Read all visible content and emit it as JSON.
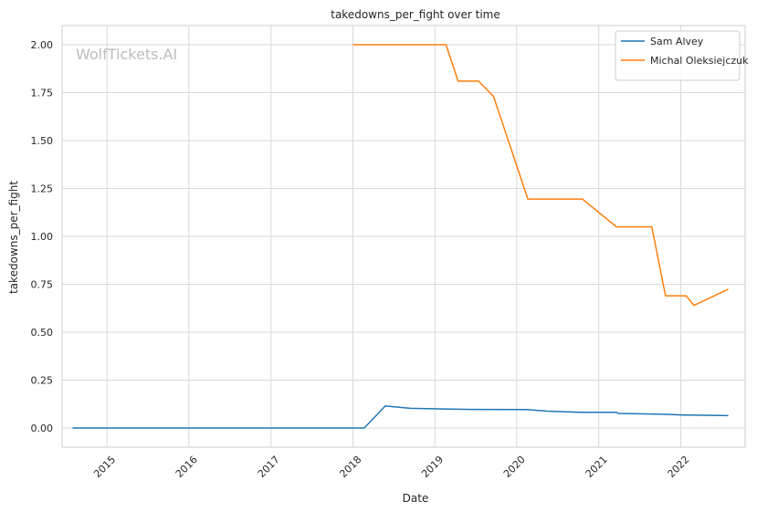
{
  "chart_data": {
    "type": "line",
    "title": "takedowns_per_fight over time",
    "xlabel": "Date",
    "ylabel": "takedowns_per_fight",
    "watermark": "WolfTickets.AI",
    "xlim": [
      "2014-06-15",
      "2022-10-15"
    ],
    "ylim": [
      -0.1,
      2.1
    ],
    "x_ticks": [
      {
        "date": "2015-01-01",
        "label": "2015"
      },
      {
        "date": "2016-01-01",
        "label": "2016"
      },
      {
        "date": "2017-01-01",
        "label": "2017"
      },
      {
        "date": "2018-01-01",
        "label": "2018"
      },
      {
        "date": "2019-01-01",
        "label": "2019"
      },
      {
        "date": "2020-01-01",
        "label": "2020"
      },
      {
        "date": "2021-01-01",
        "label": "2021"
      },
      {
        "date": "2022-01-01",
        "label": "2022"
      }
    ],
    "y_ticks": [
      {
        "value": 0.0,
        "label": "0.00"
      },
      {
        "value": 0.25,
        "label": "0.25"
      },
      {
        "value": 0.5,
        "label": "0.50"
      },
      {
        "value": 0.75,
        "label": "0.75"
      },
      {
        "value": 1.0,
        "label": "1.00"
      },
      {
        "value": 1.25,
        "label": "1.25"
      },
      {
        "value": 1.5,
        "label": "1.50"
      },
      {
        "value": 1.75,
        "label": "1.75"
      },
      {
        "value": 2.0,
        "label": "2.00"
      }
    ],
    "grid": true,
    "legend_position": "top-right",
    "series": [
      {
        "name": "Sam Alvey",
        "color": "#1f77b4",
        "points": [
          {
            "x": "2014-08-01",
            "y": 0.0
          },
          {
            "x": "2018-02-20",
            "y": 0.0
          },
          {
            "x": "2018-05-25",
            "y": 0.115
          },
          {
            "x": "2018-09-15",
            "y": 0.103
          },
          {
            "x": "2019-01-15",
            "y": 0.1
          },
          {
            "x": "2019-06-15",
            "y": 0.097
          },
          {
            "x": "2020-02-15",
            "y": 0.096
          },
          {
            "x": "2020-05-15",
            "y": 0.088
          },
          {
            "x": "2020-10-15",
            "y": 0.082
          },
          {
            "x": "2021-03-20",
            "y": 0.082
          },
          {
            "x": "2021-03-30",
            "y": 0.076
          },
          {
            "x": "2021-10-15",
            "y": 0.072
          },
          {
            "x": "2022-01-15",
            "y": 0.068
          },
          {
            "x": "2022-08-01",
            "y": 0.065
          }
        ]
      },
      {
        "name": "Michal Oleksiejczuk",
        "color": "#ff7f0e",
        "points": [
          {
            "x": "2018-01-01",
            "y": 2.0
          },
          {
            "x": "2019-02-20",
            "y": 2.0
          },
          {
            "x": "2019-04-15",
            "y": 1.81
          },
          {
            "x": "2019-07-15",
            "y": 1.81
          },
          {
            "x": "2019-09-20",
            "y": 1.73
          },
          {
            "x": "2020-02-20",
            "y": 1.195
          },
          {
            "x": "2020-10-20",
            "y": 1.195
          },
          {
            "x": "2021-03-20",
            "y": 1.05
          },
          {
            "x": "2021-08-25",
            "y": 1.05
          },
          {
            "x": "2021-10-25",
            "y": 0.69
          },
          {
            "x": "2022-01-25",
            "y": 0.69
          },
          {
            "x": "2022-03-01",
            "y": 0.64
          },
          {
            "x": "2022-08-01",
            "y": 0.725
          }
        ]
      }
    ]
  }
}
